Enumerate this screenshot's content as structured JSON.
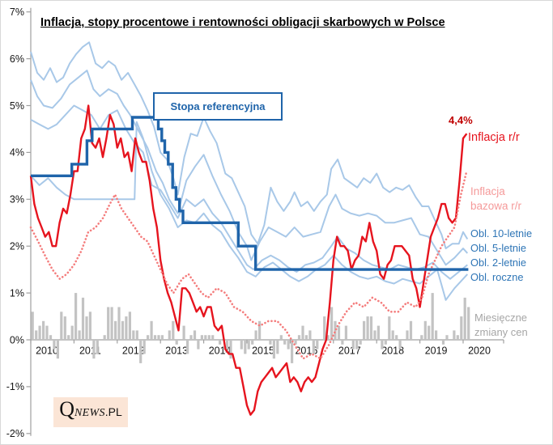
{
  "title": "Inflacja, stopy procentowe i rentowności obligacji skarbowych w Polsce",
  "annotations": {
    "stopa_box": "Stopa referencyjna",
    "peak_value": "4,4%",
    "inflacja": "Inflacja r/r",
    "bazowa_line1": "Inflacja",
    "bazowa_line2": "bazowa r/r",
    "obl10": "Obl. 10-letnie",
    "obl5": "Obl. 5-letnie",
    "obl2": "Obl. 2-letnie",
    "obl1": "Obl. roczne",
    "bars_line1": "Miesięczne",
    "bars_line2": "zmiany cen"
  },
  "logo": {
    "q": "Q",
    "news": "NEWS",
    "pl": ".PL"
  },
  "colors": {
    "red": "#e6141e",
    "dark_red": "#c00000",
    "dark_blue": "#1f64aa",
    "light_blue": "#a8c8e8",
    "pink": "#f47d7d",
    "pink_text": "#f59a9a",
    "gray_bar": "#c3c3c3",
    "gray_text": "#a6a6a6",
    "axis": "#a0a0a0"
  },
  "chart_data": {
    "type": "line",
    "title": "Inflacja, stopy procentowe i rentowności obligacji skarbowych w Polsce",
    "xlabel": "",
    "ylabel": "",
    "xlim": [
      2010,
      2020.9
    ],
    "ylim": [
      -2,
      7
    ],
    "grid": false,
    "legend": "direct labels at right edge",
    "y_ticks": [
      {
        "v": 7,
        "label": "7%"
      },
      {
        "v": 6,
        "label": "6%"
      },
      {
        "v": 5,
        "label": "5%"
      },
      {
        "v": 4,
        "label": "4%"
      },
      {
        "v": 3,
        "label": "3%"
      },
      {
        "v": 2,
        "label": "2%"
      },
      {
        "v": 1,
        "label": "1%"
      },
      {
        "v": 0,
        "label": "0%"
      },
      {
        "v": -1,
        "label": "-1%"
      },
      {
        "v": -2,
        "label": "-2%"
      }
    ],
    "x_ticks": [
      {
        "v": 2010,
        "label": "2010"
      },
      {
        "v": 2011,
        "label": "2011"
      },
      {
        "v": 2012,
        "label": "2012"
      },
      {
        "v": 2013,
        "label": "2013"
      },
      {
        "v": 2014,
        "label": "2014"
      },
      {
        "v": 2015,
        "label": "2015"
      },
      {
        "v": 2016,
        "label": "2016"
      },
      {
        "v": 2017,
        "label": "2017"
      },
      {
        "v": 2018,
        "label": "2018"
      },
      {
        "v": 2019,
        "label": "2019"
      },
      {
        "v": 2020,
        "label": "2020"
      }
    ],
    "series": [
      {
        "name": "Miesięczne zmiany cen",
        "type": "bar",
        "color": "#c3c3c3",
        "x_start": 2010,
        "x_step": "month",
        "values": [
          0.6,
          0.2,
          0.3,
          0.4,
          0.3,
          0.1,
          -0.2,
          -0.4,
          0.6,
          0.5,
          0.1,
          0.3,
          1.0,
          0.2,
          0.9,
          0.5,
          0.6,
          -0.4,
          -0.3,
          0.0,
          0.1,
          0.7,
          0.7,
          0.4,
          0.7,
          0.4,
          0.5,
          0.6,
          0.2,
          0.2,
          -0.5,
          -0.3,
          0.1,
          0.4,
          0.1,
          0.1,
          0.1,
          0.0,
          0.2,
          0.4,
          -0.1,
          0.0,
          0.3,
          -0.3,
          0.1,
          0.2,
          -0.2,
          0.1,
          0.1,
          0.1,
          0.1,
          0.0,
          -0.1,
          0.0,
          -0.2,
          -0.4,
          0.0,
          0.0,
          -0.2,
          -0.3,
          -0.2,
          -0.1,
          0.2,
          0.4,
          0.0,
          0.0,
          -0.1,
          -0.4,
          -0.3,
          0.1,
          -0.1,
          -0.2,
          -0.5,
          -0.1,
          0.1,
          0.3,
          0.1,
          0.2,
          -0.3,
          -0.2,
          0.0,
          0.5,
          0.1,
          0.7,
          0.4,
          0.3,
          -0.1,
          0.3,
          0.0,
          -0.2,
          -0.2,
          -0.1,
          0.4,
          0.5,
          0.5,
          0.2,
          0.3,
          -0.2,
          -0.1,
          0.5,
          0.2,
          0.1,
          -0.2,
          0.0,
          0.2,
          0.4,
          0.0,
          0.0,
          0.1,
          0.4,
          0.3,
          1.0,
          0.2,
          0.0,
          -0.1,
          0.1,
          0.0,
          0.2,
          0.1,
          0.5,
          0.9,
          0.7
        ]
      },
      {
        "name": "Obl. roczne",
        "type": "line",
        "color": "#a8c8e8",
        "width": 2,
        "x": [
          2010.0,
          2010.2,
          2010.4,
          2010.6,
          2010.8,
          2011.0,
          2012.4,
          2012.45,
          2012.6,
          2012.8,
          2013.0,
          2013.2,
          2013.4,
          2013.6,
          2013.8,
          2014.0,
          2014.2,
          2014.4,
          2014.6,
          2014.8,
          2015.0,
          2015.2,
          2015.4,
          2015.6,
          2015.8,
          2016.0,
          2016.2,
          2016.4,
          2016.6,
          2016.8,
          2017.0,
          2017.2,
          2017.4,
          2017.6,
          2017.8,
          2018.0,
          2018.2,
          2018.4,
          2018.6,
          2018.8,
          2019.0,
          2019.2,
          2019.4,
          2019.6,
          2019.8,
          2020.0,
          2020.1
        ],
        "values": [
          3.5,
          3.3,
          3.45,
          3.25,
          3.1,
          3.0,
          3.0,
          4.65,
          4.3,
          3.6,
          3.1,
          2.8,
          2.4,
          2.55,
          2.5,
          2.7,
          2.45,
          2.3,
          2.0,
          1.75,
          1.45,
          1.35,
          1.55,
          1.65,
          1.5,
          1.35,
          1.25,
          1.35,
          1.5,
          1.6,
          1.8,
          1.6,
          1.45,
          1.35,
          1.3,
          1.35,
          1.25,
          1.2,
          1.3,
          1.25,
          1.2,
          1.35,
          1.5,
          0.85,
          1.1,
          1.3,
          1.4
        ]
      },
      {
        "name": "Obl. 2-letnie",
        "type": "line",
        "color": "#a8c8e8",
        "width": 2,
        "x": [
          2010.0,
          2010.2,
          2010.4,
          2010.6,
          2010.8,
          2011.0,
          2011.2,
          2011.4,
          2011.6,
          2011.8,
          2012.0,
          2012.2,
          2012.4,
          2012.6,
          2012.8,
          2013.0,
          2013.2,
          2013.4,
          2013.6,
          2013.8,
          2014.0,
          2014.2,
          2014.4,
          2014.6,
          2014.8,
          2015.0,
          2015.15,
          2015.35,
          2015.55,
          2015.75,
          2015.95,
          2016.15,
          2016.35,
          2016.55,
          2016.75,
          2016.95,
          2017.1,
          2017.3,
          2017.5,
          2017.7,
          2017.9,
          2018.1,
          2018.3,
          2018.5,
          2018.7,
          2018.9,
          2019.1,
          2019.3,
          2019.5,
          2019.7,
          2019.9,
          2020.1
        ],
        "values": [
          4.7,
          4.6,
          4.5,
          4.6,
          4.8,
          5.0,
          4.9,
          4.8,
          4.5,
          4.8,
          4.9,
          4.5,
          4.2,
          4.0,
          3.3,
          3.2,
          2.9,
          2.6,
          3.0,
          2.85,
          3.0,
          2.7,
          2.5,
          2.2,
          1.9,
          1.6,
          1.5,
          1.7,
          1.8,
          1.7,
          1.55,
          1.45,
          1.6,
          1.65,
          1.75,
          2.0,
          2.2,
          1.95,
          1.85,
          1.7,
          1.6,
          1.55,
          1.5,
          1.6,
          1.55,
          1.5,
          1.55,
          1.65,
          1.45,
          1.3,
          1.45,
          1.6
        ]
      },
      {
        "name": "Obl. 5-letnie",
        "type": "line",
        "color": "#a8c8e8",
        "width": 2,
        "x": [
          2010.0,
          2010.15,
          2010.3,
          2010.5,
          2010.7,
          2010.9,
          2011.1,
          2011.3,
          2011.45,
          2011.6,
          2011.8,
          2012.0,
          2012.15,
          2012.3,
          2012.5,
          2012.7,
          2012.9,
          2013.05,
          2013.2,
          2013.4,
          2013.6,
          2013.8,
          2014.0,
          2014.2,
          2014.4,
          2014.6,
          2014.8,
          2015.0,
          2015.1,
          2015.3,
          2015.5,
          2015.7,
          2015.9,
          2016.1,
          2016.3,
          2016.5,
          2016.7,
          2016.9,
          2017.05,
          2017.2,
          2017.4,
          2017.6,
          2017.8,
          2018.0,
          2018.2,
          2018.4,
          2018.6,
          2018.8,
          2019.0,
          2019.2,
          2019.4,
          2019.6,
          2019.8,
          2020.0,
          2020.1
        ],
        "values": [
          5.55,
          5.2,
          5.0,
          4.95,
          5.15,
          5.45,
          5.6,
          5.75,
          5.35,
          5.2,
          5.35,
          5.25,
          5.0,
          4.8,
          4.45,
          4.1,
          3.6,
          3.35,
          3.0,
          2.7,
          3.4,
          3.7,
          3.95,
          3.5,
          3.1,
          2.75,
          2.3,
          2.0,
          1.7,
          2.1,
          2.4,
          2.3,
          2.2,
          2.4,
          2.2,
          2.25,
          2.3,
          2.85,
          3.1,
          2.8,
          2.7,
          2.65,
          2.7,
          2.65,
          2.5,
          2.5,
          2.55,
          2.6,
          2.25,
          2.2,
          1.9,
          1.6,
          1.75,
          1.95,
          1.85
        ]
      },
      {
        "name": "Obl. 10-letnie",
        "type": "line",
        "color": "#a8c8e8",
        "width": 2,
        "x": [
          2010.0,
          2010.15,
          2010.3,
          2010.45,
          2010.6,
          2010.75,
          2010.9,
          2011.05,
          2011.2,
          2011.35,
          2011.5,
          2011.65,
          2011.8,
          2011.95,
          2012.1,
          2012.25,
          2012.4,
          2012.55,
          2012.7,
          2012.85,
          2013.0,
          2013.15,
          2013.3,
          2013.4,
          2013.55,
          2013.7,
          2013.85,
          2014.0,
          2014.15,
          2014.3,
          2014.5,
          2014.65,
          2014.8,
          2014.95,
          2015.1,
          2015.25,
          2015.4,
          2015.55,
          2015.7,
          2015.85,
          2016.0,
          2016.1,
          2016.25,
          2016.4,
          2016.55,
          2016.7,
          2016.85,
          2016.95,
          2017.1,
          2017.25,
          2017.4,
          2017.55,
          2017.7,
          2017.85,
          2018.0,
          2018.15,
          2018.3,
          2018.45,
          2018.6,
          2018.75,
          2018.9,
          2019.05,
          2019.2,
          2019.35,
          2019.5,
          2019.6,
          2019.75,
          2019.9,
          2020.0,
          2020.1
        ],
        "values": [
          6.15,
          5.7,
          5.55,
          5.8,
          5.5,
          5.6,
          5.9,
          6.1,
          6.25,
          6.35,
          5.9,
          5.8,
          5.95,
          5.85,
          5.55,
          5.7,
          5.45,
          5.2,
          4.9,
          4.55,
          4.0,
          3.85,
          3.45,
          3.1,
          3.9,
          4.4,
          4.35,
          4.75,
          4.45,
          4.2,
          3.55,
          3.45,
          3.15,
          2.85,
          2.25,
          2.05,
          2.45,
          3.25,
          2.95,
          2.75,
          2.95,
          3.15,
          2.85,
          2.95,
          2.75,
          2.95,
          3.1,
          3.65,
          3.85,
          3.45,
          3.35,
          3.25,
          3.45,
          3.35,
          3.55,
          3.25,
          3.15,
          3.25,
          3.2,
          3.3,
          3.05,
          2.85,
          2.85,
          2.55,
          2.25,
          1.95,
          2.05,
          2.05,
          2.3,
          2.15
        ]
      },
      {
        "name": "Inflacja r/r",
        "type": "line",
        "color": "#e6141e",
        "width": 2.4,
        "x_start": 2010,
        "x_step": "month",
        "values": [
          3.5,
          2.9,
          2.6,
          2.4,
          2.2,
          2.3,
          2.0,
          2.0,
          2.5,
          2.8,
          2.7,
          3.1,
          3.6,
          3.6,
          4.3,
          4.5,
          5.0,
          4.2,
          4.1,
          4.3,
          3.9,
          4.3,
          4.8,
          4.6,
          4.1,
          4.3,
          3.9,
          4.0,
          3.6,
          4.3,
          4.0,
          3.8,
          3.8,
          3.4,
          2.8,
          2.4,
          1.7,
          1.3,
          1.0,
          0.8,
          0.5,
          0.2,
          1.1,
          1.1,
          1.0,
          0.8,
          0.6,
          0.7,
          0.5,
          0.7,
          0.7,
          0.3,
          0.2,
          0.3,
          -0.2,
          -0.3,
          -0.3,
          -0.6,
          -0.6,
          -1.0,
          -1.4,
          -1.6,
          -1.5,
          -1.1,
          -0.9,
          -0.8,
          -0.7,
          -0.6,
          -0.8,
          -0.7,
          -0.6,
          -0.5,
          -0.9,
          -0.8,
          -0.9,
          -1.1,
          -0.9,
          -0.8,
          -0.9,
          -0.8,
          -0.5,
          -0.2,
          0.0,
          0.8,
          1.7,
          2.2,
          2.0,
          2.0,
          1.9,
          1.5,
          1.7,
          1.8,
          2.2,
          2.1,
          2.5,
          2.1,
          1.9,
          1.4,
          1.3,
          1.6,
          1.7,
          2.0,
          2.0,
          2.0,
          1.9,
          1.8,
          1.3,
          1.1,
          0.7,
          1.2,
          1.7,
          2.2,
          2.4,
          2.6,
          2.9,
          2.9,
          2.6,
          2.5,
          2.6,
          3.4,
          4.3,
          4.4
        ],
        "end_label": "4,4%"
      },
      {
        "name": "Inflacja bazowa r/r",
        "type": "dotted",
        "color": "#f47d7d",
        "width": 2.6,
        "x": [
          2010.0,
          2010.17,
          2010.33,
          2010.5,
          2010.67,
          2010.83,
          2011.0,
          2011.17,
          2011.33,
          2011.5,
          2011.67,
          2011.83,
          2011.95,
          2012.1,
          2012.25,
          2012.4,
          2012.55,
          2012.7,
          2012.85,
          2013.0,
          2013.15,
          2013.3,
          2013.5,
          2013.65,
          2013.8,
          2013.95,
          2014.1,
          2014.3,
          2014.5,
          2014.7,
          2014.9,
          2015.1,
          2015.3,
          2015.5,
          2015.7,
          2015.9,
          2016.1,
          2016.3,
          2016.5,
          2016.7,
          2016.9,
          2017.1,
          2017.3,
          2017.5,
          2017.7,
          2017.9,
          2018.1,
          2018.3,
          2018.5,
          2018.7,
          2018.9,
          2019.05,
          2019.2,
          2019.35,
          2019.5,
          2019.65,
          2019.8,
          2019.95,
          2020.08
        ],
        "values": [
          2.4,
          2.1,
          1.8,
          1.5,
          1.3,
          1.4,
          1.6,
          1.9,
          2.3,
          2.4,
          2.6,
          2.9,
          3.1,
          2.8,
          2.6,
          2.4,
          2.2,
          2.1,
          1.8,
          1.5,
          1.2,
          1.0,
          1.3,
          1.4,
          1.2,
          1.0,
          0.9,
          1.1,
          1.0,
          0.7,
          0.6,
          0.4,
          0.3,
          0.4,
          0.4,
          0.2,
          -0.1,
          -0.4,
          -0.3,
          -0.4,
          -0.1,
          0.3,
          0.6,
          0.8,
          0.7,
          0.9,
          0.8,
          0.6,
          0.6,
          0.8,
          0.7,
          0.9,
          1.4,
          1.7,
          2.0,
          2.2,
          2.4,
          3.1,
          3.6
        ]
      },
      {
        "name": "Stopa referencyjna",
        "type": "step",
        "color": "#1f64aa",
        "width": 3.4,
        "x": [
          2010.0,
          2010.95,
          2011.3,
          2011.42,
          2012.35,
          2012.95,
          2013.03,
          2013.1,
          2013.18,
          2013.28,
          2013.36,
          2013.44,
          2013.52,
          2014.8,
          2015.2
        ],
        "values": [
          3.5,
          3.75,
          4.25,
          4.5,
          4.75,
          4.5,
          4.25,
          4.0,
          3.75,
          3.25,
          3.0,
          2.75,
          2.5,
          2.0,
          1.5
        ],
        "x_end": 2020.12
      }
    ]
  }
}
